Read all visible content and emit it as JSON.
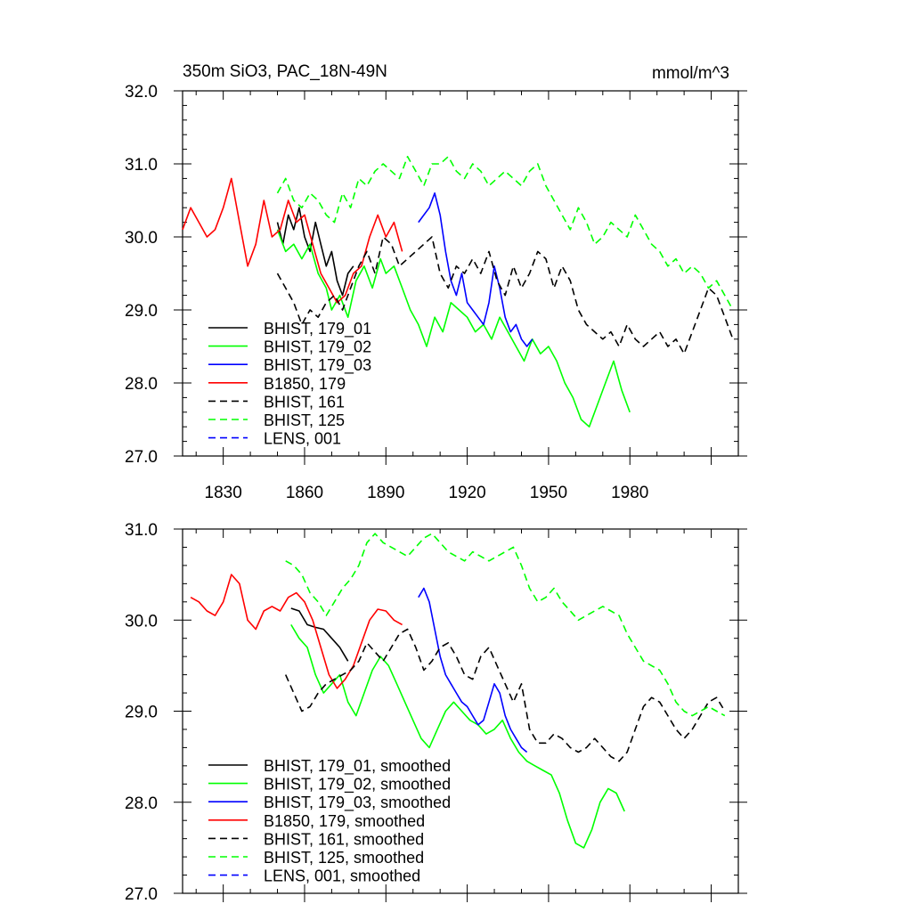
{
  "chart_data": [
    {
      "type": "line",
      "title": "350m SiO3, PAC_18N-49N",
      "units": "mmol/m^3",
      "xlabel": "",
      "ylabel": "",
      "xlim": [
        1815,
        2020
      ],
      "ylim": [
        27.0,
        32.0
      ],
      "xticks": [
        1830,
        1860,
        1890,
        1920,
        1950,
        1980
      ],
      "xtick_labels": [
        "1830",
        "1860",
        "1890",
        "1920",
        "1950",
        "1980"
      ],
      "yticks": [
        27.0,
        28.0,
        29.0,
        30.0,
        31.0,
        32.0
      ],
      "ytick_labels": [
        "27.0",
        "28.0",
        "29.0",
        "30.0",
        "31.0",
        "32.0"
      ],
      "grid": false,
      "legend_position": "bottom-left",
      "series": [
        {
          "name": "BHIST, 179_01",
          "color": "#000000",
          "dash": "solid",
          "x": [
            1850,
            1852,
            1854,
            1856,
            1858,
            1860,
            1862,
            1864,
            1866,
            1868,
            1870,
            1872,
            1874,
            1876,
            1878
          ],
          "values": [
            30.2,
            29.9,
            30.3,
            30.1,
            30.4,
            30.0,
            29.8,
            30.2,
            29.9,
            29.6,
            29.8,
            29.4,
            29.2,
            29.5,
            29.6
          ]
        },
        {
          "name": "BHIST, 179_02",
          "color": "#00ff00",
          "dash": "solid",
          "x": [
            1850,
            1853,
            1856,
            1859,
            1862,
            1865,
            1868,
            1870,
            1873,
            1876,
            1879,
            1882,
            1885,
            1888,
            1890,
            1893,
            1896,
            1899,
            1902,
            1905,
            1908,
            1911,
            1914,
            1917,
            1920,
            1923,
            1926,
            1929,
            1932,
            1935,
            1938,
            1941,
            1944,
            1947,
            1950,
            1953,
            1956,
            1959,
            1962,
            1965,
            1968,
            1971,
            1974,
            1977,
            1980
          ],
          "values": [
            30.1,
            29.8,
            29.9,
            29.7,
            29.9,
            29.5,
            29.3,
            29.0,
            29.2,
            28.9,
            29.4,
            29.6,
            29.3,
            29.7,
            29.5,
            29.6,
            29.3,
            29.0,
            28.8,
            28.5,
            28.9,
            28.7,
            29.1,
            29.0,
            28.9,
            28.7,
            28.8,
            28.6,
            28.9,
            28.7,
            28.5,
            28.3,
            28.6,
            28.4,
            28.5,
            28.3,
            28.0,
            27.8,
            27.5,
            27.4,
            27.7,
            28.0,
            28.3,
            27.9,
            27.6
          ]
        },
        {
          "name": "BHIST, 179_03",
          "color": "#0000ff",
          "dash": "solid",
          "x": [
            1902,
            1904,
            1906,
            1908,
            1910,
            1912,
            1914,
            1916,
            1918,
            1920,
            1922,
            1924,
            1926,
            1928,
            1930,
            1932,
            1934,
            1936,
            1938,
            1940,
            1942,
            1944
          ],
          "values": [
            30.2,
            30.3,
            30.4,
            30.6,
            30.3,
            29.8,
            29.4,
            29.2,
            29.5,
            29.1,
            29.0,
            28.9,
            28.8,
            29.1,
            29.6,
            29.3,
            28.9,
            28.7,
            28.8,
            28.6,
            28.5,
            28.6
          ]
        },
        {
          "name": "B1850, 179",
          "color": "#ff0000",
          "dash": "solid",
          "x": [
            1815,
            1818,
            1821,
            1824,
            1827,
            1830,
            1833,
            1836,
            1839,
            1842,
            1845,
            1848,
            1851,
            1854,
            1857,
            1860,
            1863,
            1866,
            1869,
            1872,
            1875,
            1878,
            1881,
            1884,
            1887,
            1890,
            1893,
            1896
          ],
          "values": [
            30.1,
            30.4,
            30.2,
            30.0,
            30.1,
            30.4,
            30.8,
            30.2,
            29.6,
            29.9,
            30.5,
            30.0,
            30.1,
            30.5,
            30.2,
            30.3,
            29.9,
            29.5,
            29.3,
            29.1,
            29.2,
            29.5,
            29.6,
            30.0,
            30.3,
            30.0,
            30.2,
            29.8
          ]
        },
        {
          "name": "BHIST, 161",
          "color": "#000000",
          "dash": "dashed",
          "x": [
            1850,
            1853,
            1856,
            1859,
            1862,
            1865,
            1868,
            1871,
            1874,
            1877,
            1880,
            1883,
            1886,
            1889,
            1892,
            1895,
            1898,
            1901,
            1904,
            1907,
            1910,
            1913,
            1916,
            1919,
            1922,
            1925,
            1928,
            1931,
            1934,
            1937,
            1940,
            1943,
            1946,
            1949,
            1952,
            1955,
            1958,
            1961,
            1964,
            1967,
            1970,
            1973,
            1976,
            1979,
            1982,
            1985,
            1988,
            1991,
            1994,
            1997,
            2000,
            2003,
            2006,
            2009,
            2012,
            2015,
            2018
          ],
          "values": [
            29.5,
            29.3,
            29.1,
            28.8,
            29.0,
            28.9,
            29.1,
            29.2,
            29.0,
            29.3,
            29.6,
            29.8,
            29.5,
            30.0,
            29.9,
            29.6,
            29.7,
            29.8,
            29.9,
            30.0,
            29.5,
            29.3,
            29.6,
            29.5,
            29.7,
            29.5,
            29.8,
            29.4,
            29.2,
            29.6,
            29.3,
            29.5,
            29.8,
            29.7,
            29.3,
            29.6,
            29.4,
            29.0,
            28.8,
            28.7,
            28.6,
            28.7,
            28.5,
            28.8,
            28.6,
            28.5,
            28.6,
            28.7,
            28.5,
            28.6,
            28.4,
            28.7,
            29.0,
            29.3,
            29.2,
            28.9,
            28.6
          ]
        },
        {
          "name": "BHIST, 125",
          "color": "#00ff00",
          "dash": "dashed",
          "x": [
            1850,
            1853,
            1856,
            1859,
            1862,
            1865,
            1868,
            1871,
            1874,
            1877,
            1880,
            1883,
            1886,
            1889,
            1892,
            1895,
            1898,
            1901,
            1904,
            1907,
            1910,
            1913,
            1916,
            1919,
            1922,
            1925,
            1928,
            1931,
            1934,
            1937,
            1940,
            1943,
            1946,
            1949,
            1952,
            1955,
            1958,
            1961,
            1964,
            1967,
            1970,
            1973,
            1976,
            1979,
            1982,
            1985,
            1988,
            1991,
            1994,
            1997,
            2000,
            2003,
            2006,
            2009,
            2012,
            2015,
            2018
          ],
          "values": [
            30.6,
            30.8,
            30.5,
            30.4,
            30.6,
            30.5,
            30.3,
            30.2,
            30.6,
            30.4,
            30.8,
            30.7,
            30.9,
            31.0,
            30.9,
            30.8,
            31.1,
            30.9,
            30.7,
            31.0,
            31.0,
            31.1,
            30.9,
            30.8,
            31.0,
            30.9,
            30.7,
            30.8,
            30.9,
            30.8,
            30.7,
            30.9,
            31.0,
            30.7,
            30.5,
            30.3,
            30.1,
            30.4,
            30.2,
            29.9,
            30.0,
            30.2,
            30.1,
            30.0,
            30.3,
            30.1,
            29.9,
            29.8,
            29.6,
            29.7,
            29.5,
            29.6,
            29.5,
            29.3,
            29.4,
            29.2,
            29.0
          ]
        },
        {
          "name": "LENS, 001",
          "color": "#0000ff",
          "dash": "dashed",
          "x": [],
          "values": []
        }
      ]
    },
    {
      "type": "line",
      "title": "",
      "xlabel": "",
      "ylabel": "",
      "xlim": [
        1815,
        2020
      ],
      "ylim": [
        27.0,
        31.0
      ],
      "xticks": [
        1830,
        1860,
        1890,
        1920,
        1950,
        1980
      ],
      "yticks": [
        27.0,
        28.0,
        29.0,
        30.0,
        31.0
      ],
      "ytick_labels": [
        "27.0",
        "28.0",
        "29.0",
        "30.0",
        "31.0"
      ],
      "grid": false,
      "legend_position": "bottom-left",
      "series": [
        {
          "name": "BHIST, 179_01, smoothed",
          "color": "#000000",
          "dash": "solid",
          "x": [
            1855,
            1858,
            1861,
            1864,
            1867,
            1870,
            1873,
            1876
          ],
          "values": [
            30.13,
            30.1,
            29.95,
            29.92,
            29.9,
            29.8,
            29.7,
            29.55
          ]
        },
        {
          "name": "BHIST, 179_02, smoothed",
          "color": "#00ff00",
          "dash": "solid",
          "x": [
            1855,
            1858,
            1861,
            1864,
            1867,
            1870,
            1873,
            1876,
            1879,
            1882,
            1885,
            1888,
            1891,
            1894,
            1897,
            1900,
            1903,
            1906,
            1909,
            1912,
            1915,
            1918,
            1921,
            1924,
            1927,
            1930,
            1933,
            1936,
            1939,
            1942,
            1945,
            1948,
            1951,
            1954,
            1957,
            1960,
            1963,
            1966,
            1969,
            1972,
            1975,
            1978
          ],
          "values": [
            29.95,
            29.8,
            29.7,
            29.4,
            29.2,
            29.3,
            29.4,
            29.1,
            28.95,
            29.2,
            29.45,
            29.6,
            29.5,
            29.3,
            29.1,
            28.9,
            28.7,
            28.6,
            28.8,
            29.0,
            29.1,
            29.0,
            28.9,
            28.85,
            28.75,
            28.8,
            28.9,
            28.7,
            28.55,
            28.45,
            28.4,
            28.35,
            28.3,
            28.1,
            27.8,
            27.55,
            27.5,
            27.7,
            28.0,
            28.15,
            28.1,
            27.9
          ]
        },
        {
          "name": "BHIST, 179_03, smoothed",
          "color": "#0000ff",
          "dash": "solid",
          "x": [
            1902,
            1904,
            1906,
            1908,
            1910,
            1912,
            1914,
            1916,
            1918,
            1920,
            1922,
            1924,
            1926,
            1928,
            1930,
            1932,
            1934,
            1936,
            1938,
            1940,
            1942
          ],
          "values": [
            30.25,
            30.35,
            30.2,
            29.9,
            29.6,
            29.4,
            29.3,
            29.2,
            29.1,
            29.05,
            28.95,
            28.85,
            28.9,
            29.1,
            29.3,
            29.2,
            28.95,
            28.8,
            28.7,
            28.6,
            28.55
          ]
        },
        {
          "name": "B1850, 179, smoothed",
          "color": "#ff0000",
          "dash": "solid",
          "x": [
            1818,
            1821,
            1824,
            1827,
            1830,
            1833,
            1836,
            1839,
            1842,
            1845,
            1848,
            1851,
            1854,
            1857,
            1860,
            1863,
            1866,
            1869,
            1872,
            1875,
            1878,
            1881,
            1884,
            1887,
            1890,
            1893,
            1896
          ],
          "values": [
            30.25,
            30.2,
            30.1,
            30.05,
            30.2,
            30.5,
            30.4,
            30.0,
            29.9,
            30.1,
            30.15,
            30.1,
            30.25,
            30.3,
            30.2,
            30.0,
            29.7,
            29.4,
            29.25,
            29.35,
            29.5,
            29.75,
            30.0,
            30.12,
            30.1,
            30.0,
            29.95
          ]
        },
        {
          "name": "BHIST, 161, smoothed",
          "color": "#000000",
          "dash": "dashed",
          "x": [
            1853,
            1856,
            1859,
            1862,
            1865,
            1868,
            1871,
            1874,
            1877,
            1880,
            1883,
            1886,
            1889,
            1892,
            1895,
            1898,
            1901,
            1904,
            1907,
            1910,
            1913,
            1916,
            1919,
            1922,
            1925,
            1928,
            1931,
            1934,
            1937,
            1940,
            1943,
            1946,
            1949,
            1952,
            1955,
            1958,
            1961,
            1964,
            1967,
            1970,
            1973,
            1976,
            1979,
            1982,
            1985,
            1988,
            1991,
            1994,
            1997,
            2000,
            2003,
            2006,
            2009,
            2012,
            2015
          ],
          "values": [
            29.4,
            29.2,
            29.0,
            29.05,
            29.2,
            29.3,
            29.35,
            29.4,
            29.45,
            29.55,
            29.75,
            29.65,
            29.55,
            29.7,
            29.85,
            29.9,
            29.7,
            29.45,
            29.55,
            29.7,
            29.75,
            29.6,
            29.4,
            29.35,
            29.6,
            29.7,
            29.5,
            29.3,
            29.1,
            29.3,
            28.8,
            28.65,
            28.65,
            28.75,
            28.7,
            28.6,
            28.55,
            28.6,
            28.7,
            28.6,
            28.5,
            28.45,
            28.55,
            28.8,
            29.05,
            29.15,
            29.1,
            28.95,
            28.8,
            28.7,
            28.8,
            28.95,
            29.1,
            29.15,
            29.0
          ]
        },
        {
          "name": "BHIST, 125, smoothed",
          "color": "#00ff00",
          "dash": "dashed",
          "x": [
            1853,
            1856,
            1859,
            1862,
            1865,
            1868,
            1871,
            1874,
            1877,
            1880,
            1883,
            1886,
            1889,
            1892,
            1895,
            1898,
            1901,
            1904,
            1907,
            1910,
            1913,
            1916,
            1919,
            1922,
            1925,
            1928,
            1931,
            1934,
            1937,
            1940,
            1943,
            1946,
            1949,
            1952,
            1955,
            1958,
            1961,
            1964,
            1967,
            1970,
            1973,
            1976,
            1979,
            1982,
            1985,
            1988,
            1991,
            1994,
            1997,
            2000,
            2003,
            2006,
            2009,
            2012,
            2015
          ],
          "values": [
            30.65,
            30.6,
            30.5,
            30.3,
            30.2,
            30.05,
            30.2,
            30.35,
            30.45,
            30.6,
            30.85,
            30.95,
            30.85,
            30.8,
            30.75,
            30.7,
            30.8,
            30.9,
            30.95,
            30.85,
            30.75,
            30.7,
            30.65,
            30.75,
            30.7,
            30.65,
            30.7,
            30.75,
            30.8,
            30.6,
            30.35,
            30.2,
            30.25,
            30.35,
            30.2,
            30.1,
            30.0,
            30.05,
            30.1,
            30.15,
            30.1,
            30.05,
            29.85,
            29.7,
            29.55,
            29.5,
            29.45,
            29.3,
            29.1,
            29.0,
            28.95,
            29.0,
            29.05,
            29.0,
            28.95
          ]
        },
        {
          "name": "LENS, 001, smoothed",
          "color": "#0000ff",
          "dash": "dashed",
          "x": [],
          "values": []
        }
      ]
    }
  ]
}
